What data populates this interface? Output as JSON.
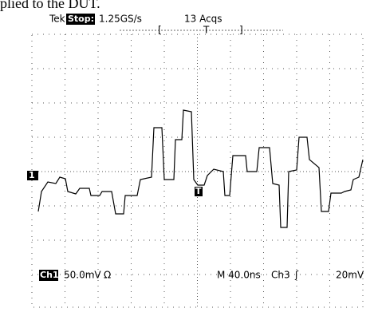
{
  "caption_fragment": "plied to the DUT.",
  "header": {
    "brand": "Tek",
    "status": "Stop:",
    "sample_rate": "1.25GS/s",
    "acquisitions": "13 Acqs",
    "bracket_left": "[",
    "trigger_marker": "T",
    "bracket_right": "]"
  },
  "markers": {
    "channel_ground": "1",
    "trigger_level": "T"
  },
  "footer": {
    "channel": "Ch1",
    "scale": "50.0mV",
    "impedance": "Ω",
    "timebase": "M 40.0ns",
    "trigger_channel": "Ch3",
    "trigger_slope": "ʃ",
    "trigger_level": "20mV"
  }
}
